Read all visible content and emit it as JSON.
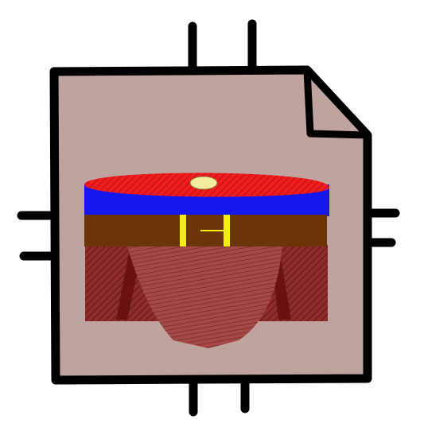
{
  "icon": {
    "subject": "file-document-with-belted-cushion-illustration",
    "colors": {
      "file_fill": "#bfa39e",
      "file_outline": "#000000",
      "fold_fill": "#bfa39e",
      "cushion_top": "#ef1d1d",
      "cushion_top_hatch": "#b80f0f",
      "cushion_band": "#1616ee",
      "belt": "#6b3508",
      "buckle": "#f4ee12",
      "knob": "#f2ec9c",
      "skirt": "#8e2b2b",
      "skirt_hatch": "#5e1414",
      "skirt_shadow": "#6a1111",
      "bulge": "#a44848",
      "bulge_hatch": "#7a2828"
    }
  }
}
